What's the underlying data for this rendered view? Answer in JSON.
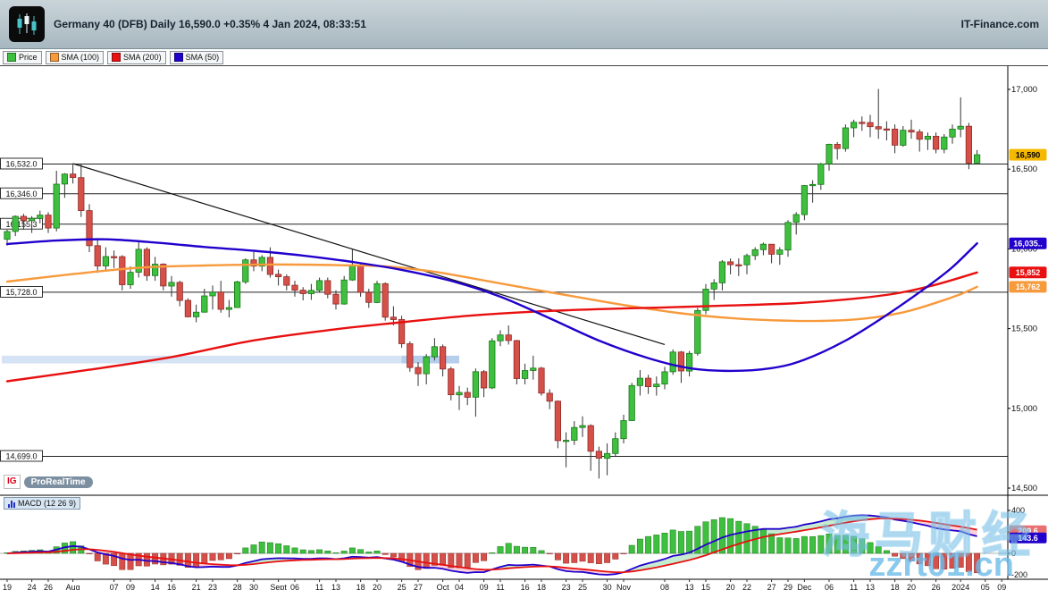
{
  "header": {
    "title": "Germany 40 (DFB) Daily 16,590.0 +0.35% 4 Jan 2024, 08:33:51",
    "brand": "IT-Finance.com"
  },
  "legend": {
    "items": [
      {
        "label": "Price",
        "color": "#3FBF3F"
      },
      {
        "label": "SMA (100)",
        "color": "#F79A3C"
      },
      {
        "label": "SMA (200)",
        "color": "#E81010"
      },
      {
        "label": "SMA (50)",
        "color": "#2200CC"
      }
    ]
  },
  "prt_badge": {
    "ig": "IG",
    "text": "ProRealTime"
  },
  "watermark": {
    "line1": "海马财经",
    "line2": "zzrt01.cn"
  },
  "chart_data": {
    "type": "candlestick",
    "instrument": "Germany 40 (DFB)",
    "timeframe": "Daily",
    "last_price": 16590.0,
    "change_pct": "+0.35%",
    "timestamp": "4 Jan 2024, 08:33:51",
    "colors": {
      "up": "#3FBF3F",
      "up_edge": "#187818",
      "down": "#D6504A",
      "down_edge": "#8F2A26",
      "wick": "#333333",
      "sma50": "#2200CC",
      "sma100": "#F79A3C",
      "sma200": "#E81010",
      "trendline": "#111111",
      "hline": "#222222",
      "zone": "#7BA7DC"
    },
    "price_axis": {
      "ticks": [
        17000,
        16500,
        16000,
        15500,
        15000,
        14500
      ],
      "badges": [
        {
          "label": "16,590",
          "price": 16590,
          "color": "#F5B800",
          "text": "#000000"
        },
        {
          "label": "16,035..",
          "price": 16035,
          "color": "#2200CC",
          "text": "#FFFFFF"
        },
        {
          "label": "15,852",
          "price": 15852,
          "color": "#E81010",
          "text": "#FFFFFF"
        },
        {
          "label": "15,762",
          "price": 15762,
          "color": "#F79A3C",
          "text": "#FFFFFF"
        }
      ]
    },
    "hlines": [
      {
        "price": 16532.0,
        "label": "16,532.0"
      },
      {
        "price": 16346.0,
        "label": "16,346.0"
      },
      {
        "price": 16155.3,
        "label": "16,155.3"
      },
      {
        "price": 15728.0,
        "label": "15,728.0"
      },
      {
        "price": 14699.0,
        "label": "14,699.0"
      }
    ],
    "zone": {
      "from": 0,
      "to": 55,
      "top": 15330,
      "bottom": 15282,
      "accent_from": 48
    },
    "trendline": {
      "i1": 8,
      "p1": 16535,
      "i2": 80,
      "p2": 15400
    },
    "smas": [
      {
        "name": "SMA (100)",
        "color": "#F79A3C",
        "points": [
          [
            0,
            15795
          ],
          [
            8,
            15842
          ],
          [
            16,
            15882
          ],
          [
            24,
            15896
          ],
          [
            32,
            15902
          ],
          [
            40,
            15898
          ],
          [
            46,
            15890
          ],
          [
            52,
            15856
          ],
          [
            58,
            15802
          ],
          [
            64,
            15746
          ],
          [
            70,
            15692
          ],
          [
            76,
            15640
          ],
          [
            82,
            15596
          ],
          [
            88,
            15566
          ],
          [
            94,
            15551
          ],
          [
            99,
            15548
          ],
          [
            104,
            15561
          ],
          [
            109,
            15602
          ],
          [
            113,
            15662
          ],
          [
            116,
            15716
          ],
          [
            118,
            15762
          ]
        ]
      },
      {
        "name": "SMA (200)",
        "color": "#E81010",
        "points": [
          [
            0,
            15170
          ],
          [
            10,
            15242
          ],
          [
            20,
            15322
          ],
          [
            30,
            15426
          ],
          [
            40,
            15496
          ],
          [
            48,
            15540
          ],
          [
            56,
            15580
          ],
          [
            64,
            15606
          ],
          [
            72,
            15622
          ],
          [
            80,
            15633
          ],
          [
            88,
            15645
          ],
          [
            96,
            15659
          ],
          [
            102,
            15682
          ],
          [
            108,
            15719
          ],
          [
            113,
            15776
          ],
          [
            118,
            15852
          ]
        ]
      },
      {
        "name": "SMA (50)",
        "color": "#2200CC",
        "points": [
          [
            0,
            16030
          ],
          [
            6,
            16052
          ],
          [
            12,
            16060
          ],
          [
            18,
            16040
          ],
          [
            24,
            16012
          ],
          [
            30,
            15988
          ],
          [
            36,
            15958
          ],
          [
            42,
            15918
          ],
          [
            48,
            15868
          ],
          [
            54,
            15800
          ],
          [
            60,
            15700
          ],
          [
            66,
            15565
          ],
          [
            72,
            15425
          ],
          [
            78,
            15315
          ],
          [
            83,
            15252
          ],
          [
            88,
            15235
          ],
          [
            93,
            15252
          ],
          [
            97,
            15305
          ],
          [
            102,
            15425
          ],
          [
            107,
            15585
          ],
          [
            112,
            15765
          ],
          [
            115,
            15885
          ],
          [
            118,
            16035
          ]
        ]
      }
    ],
    "candles": [
      [
        16060,
        16120,
        16020,
        16109
      ],
      [
        16109,
        16210,
        16080,
        16204
      ],
      [
        16204,
        16220,
        16120,
        16177
      ],
      [
        16177,
        16205,
        16100,
        16191
      ],
      [
        16191,
        16240,
        16160,
        16212
      ],
      [
        16212,
        16230,
        16100,
        16131
      ],
      [
        16131,
        16490,
        16110,
        16406
      ],
      [
        16406,
        16475,
        16320,
        16469
      ],
      [
        16469,
        16528,
        16410,
        16447
      ],
      [
        16447,
        16532,
        16200,
        16240
      ],
      [
        16240,
        16280,
        15980,
        16020
      ],
      [
        16020,
        16060,
        15850,
        15893
      ],
      [
        15893,
        16010,
        15860,
        15952
      ],
      [
        15952,
        15990,
        15880,
        15951
      ],
      [
        15951,
        15960,
        15740,
        15775
      ],
      [
        15775,
        15890,
        15750,
        15853
      ],
      [
        15853,
        16045,
        15820,
        15997
      ],
      [
        15997,
        16010,
        15800,
        15832
      ],
      [
        15832,
        15950,
        15800,
        15904
      ],
      [
        15904,
        15910,
        15740,
        15767
      ],
      [
        15767,
        15830,
        15700,
        15790
      ],
      [
        15790,
        15800,
        15640,
        15677
      ],
      [
        15677,
        15690,
        15570,
        15574
      ],
      [
        15574,
        15650,
        15540,
        15603
      ],
      [
        15603,
        15750,
        15600,
        15705
      ],
      [
        15705,
        15770,
        15620,
        15729
      ],
      [
        15729,
        15800,
        15600,
        15621
      ],
      [
        15621,
        15680,
        15570,
        15632
      ],
      [
        15632,
        15800,
        15630,
        15793
      ],
      [
        15793,
        15940,
        15780,
        15931
      ],
      [
        15931,
        15980,
        15860,
        15892
      ],
      [
        15892,
        15960,
        15860,
        15947
      ],
      [
        15947,
        16010,
        15820,
        15840
      ],
      [
        15840,
        15870,
        15770,
        15825
      ],
      [
        15825,
        15840,
        15740,
        15772
      ],
      [
        15772,
        15800,
        15700,
        15741
      ],
      [
        15741,
        15760,
        15677,
        15719
      ],
      [
        15719,
        15780,
        15680,
        15740
      ],
      [
        15740,
        15820,
        15730,
        15801
      ],
      [
        15801,
        15820,
        15690,
        15715
      ],
      [
        15715,
        15740,
        15620,
        15654
      ],
      [
        15654,
        15830,
        15650,
        15805
      ],
      [
        15805,
        15998,
        15800,
        15894
      ],
      [
        15894,
        15908,
        15700,
        15727
      ],
      [
        15727,
        15750,
        15630,
        15664
      ],
      [
        15664,
        15800,
        15660,
        15782
      ],
      [
        15782,
        15790,
        15550,
        15572
      ],
      [
        15572,
        15640,
        15520,
        15557
      ],
      [
        15557,
        15580,
        15380,
        15405
      ],
      [
        15405,
        15420,
        15230,
        15256
      ],
      [
        15256,
        15290,
        15140,
        15217
      ],
      [
        15217,
        15340,
        15150,
        15323
      ],
      [
        15323,
        15440,
        15300,
        15387
      ],
      [
        15387,
        15400,
        15200,
        15247
      ],
      [
        15247,
        15260,
        15050,
        15085
      ],
      [
        15085,
        15140,
        14990,
        15100
      ],
      [
        15100,
        15130,
        15020,
        15070
      ],
      [
        15070,
        15250,
        14948,
        15230
      ],
      [
        15230,
        15240,
        15070,
        15128
      ],
      [
        15128,
        15440,
        15120,
        15423
      ],
      [
        15423,
        15490,
        15390,
        15460
      ],
      [
        15460,
        15520,
        15400,
        15425
      ],
      [
        15425,
        15430,
        15150,
        15187
      ],
      [
        15187,
        15280,
        15150,
        15237
      ],
      [
        15237,
        15330,
        15180,
        15252
      ],
      [
        15252,
        15260,
        15080,
        15095
      ],
      [
        15095,
        15120,
        14995,
        15045
      ],
      [
        15045,
        15050,
        14750,
        14798
      ],
      [
        14798,
        14850,
        14630,
        14800
      ],
      [
        14800,
        14920,
        14770,
        14880
      ],
      [
        14880,
        14950,
        14820,
        14892
      ],
      [
        14892,
        14900,
        14608,
        14731
      ],
      [
        14731,
        14760,
        14560,
        14687
      ],
      [
        14687,
        14780,
        14580,
        14717
      ],
      [
        14717,
        14850,
        14700,
        14810
      ],
      [
        14810,
        14960,
        14780,
        14923
      ],
      [
        14923,
        15160,
        14920,
        15143
      ],
      [
        15143,
        15240,
        15080,
        15189
      ],
      [
        15189,
        15210,
        15090,
        15136
      ],
      [
        15136,
        15200,
        15080,
        15152
      ],
      [
        15152,
        15260,
        15120,
        15229
      ],
      [
        15229,
        15370,
        15210,
        15353
      ],
      [
        15353,
        15360,
        15160,
        15234
      ],
      [
        15234,
        15360,
        15200,
        15345
      ],
      [
        15345,
        15630,
        15330,
        15614
      ],
      [
        15614,
        15780,
        15590,
        15748
      ],
      [
        15748,
        15810,
        15680,
        15787
      ],
      [
        15787,
        15930,
        15740,
        15919
      ],
      [
        15919,
        15940,
        15840,
        15901
      ],
      [
        15901,
        15940,
        15830,
        15900
      ],
      [
        15900,
        15970,
        15840,
        15958
      ],
      [
        15958,
        16010,
        15930,
        15995
      ],
      [
        15995,
        16040,
        15960,
        16029
      ],
      [
        16029,
        16030,
        15910,
        15966
      ],
      [
        15966,
        16010,
        15900,
        15993
      ],
      [
        15993,
        16180,
        15950,
        16166
      ],
      [
        16166,
        16230,
        16090,
        16215
      ],
      [
        16215,
        16400,
        16180,
        16397
      ],
      [
        16397,
        16430,
        16290,
        16404
      ],
      [
        16404,
        16540,
        16370,
        16533
      ],
      [
        16533,
        16660,
        16490,
        16656
      ],
      [
        16656,
        16670,
        16560,
        16629
      ],
      [
        16629,
        16780,
        16610,
        16759
      ],
      [
        16759,
        16810,
        16700,
        16794
      ],
      [
        16794,
        16830,
        16740,
        16792
      ],
      [
        16792,
        16840,
        16700,
        16766
      ],
      [
        16766,
        17003,
        16690,
        16752
      ],
      [
        16752,
        16800,
        16680,
        16751
      ],
      [
        16751,
        16780,
        16600,
        16650
      ],
      [
        16650,
        16770,
        16640,
        16744
      ],
      [
        16744,
        16810,
        16690,
        16733
      ],
      [
        16733,
        16750,
        16610,
        16687
      ],
      [
        16687,
        16730,
        16620,
        16706
      ],
      [
        16706,
        16730,
        16600,
        16624
      ],
      [
        16624,
        16720,
        16600,
        16701
      ],
      [
        16701,
        16780,
        16660,
        16751
      ],
      [
        16751,
        16950,
        16700,
        16769
      ],
      [
        16769,
        16790,
        16500,
        16538
      ],
      [
        16538,
        16620,
        16530,
        16590
      ]
    ],
    "x_ticks": [
      [
        0,
        "19"
      ],
      [
        3,
        "24"
      ],
      [
        5,
        "26"
      ],
      [
        8,
        "Aug"
      ],
      [
        13,
        "07"
      ],
      [
        15,
        "09"
      ],
      [
        18,
        "14"
      ],
      [
        20,
        "16"
      ],
      [
        23,
        "21"
      ],
      [
        25,
        "23"
      ],
      [
        28,
        "28"
      ],
      [
        30,
        "30"
      ],
      [
        33,
        "Sept"
      ],
      [
        35,
        "06"
      ],
      [
        38,
        "11"
      ],
      [
        40,
        "13"
      ],
      [
        43,
        "18"
      ],
      [
        45,
        "20"
      ],
      [
        48,
        "25"
      ],
      [
        50,
        "27"
      ],
      [
        53,
        "Oct"
      ],
      [
        55,
        "04"
      ],
      [
        58,
        "09"
      ],
      [
        60,
        "11"
      ],
      [
        63,
        "16"
      ],
      [
        65,
        "18"
      ],
      [
        68,
        "23"
      ],
      [
        70,
        "25"
      ],
      [
        73,
        "30"
      ],
      [
        75,
        "Nov"
      ],
      [
        80,
        "08"
      ],
      [
        83,
        "13"
      ],
      [
        85,
        "15"
      ],
      [
        88,
        "20"
      ],
      [
        90,
        "22"
      ],
      [
        93,
        "27"
      ],
      [
        95,
        "29"
      ],
      [
        97,
        "Dec"
      ],
      [
        100,
        "06"
      ],
      [
        103,
        "11"
      ],
      [
        105,
        "13"
      ],
      [
        108,
        "18"
      ],
      [
        110,
        "20"
      ],
      [
        113,
        "26"
      ],
      [
        116,
        "2024"
      ],
      [
        119,
        "05"
      ],
      [
        121,
        "09"
      ]
    ],
    "macd": {
      "label": "MACD (12 26 9)",
      "params": [
        12,
        26,
        9
      ],
      "axis_ticks": [
        400,
        200,
        0,
        -200
      ],
      "badges": [
        {
          "label": "209.6",
          "color": "#E87070",
          "text": "#FFFFFF"
        },
        {
          "label": "143.6",
          "color": "#2200CC",
          "text": "#FFFFFF"
        }
      ]
    }
  }
}
